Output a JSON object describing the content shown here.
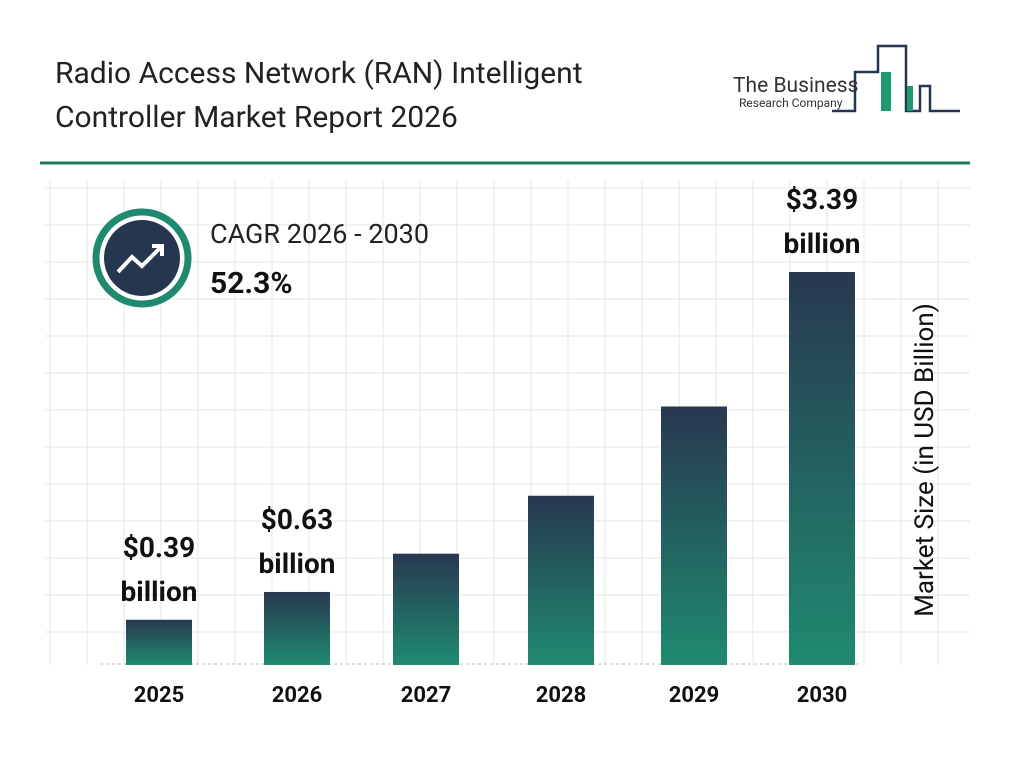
{
  "chart_data": {
    "type": "bar",
    "title": "Radio Access Network (RAN) Intelligent Controller Market Report 2026",
    "categories": [
      "2025",
      "2026",
      "2027",
      "2028",
      "2029",
      "2030"
    ],
    "values": [
      0.39,
      0.63,
      0.96,
      1.46,
      2.23,
      3.39
    ],
    "value_labels": [
      "$0.39 billion",
      "$0.63 billion",
      null,
      null,
      null,
      "$3.39 billion"
    ],
    "color_top": "#283850",
    "color_bottom": "#1f8a70",
    "ylabel": "Market Size (in USD Billion)",
    "cagr_label": "CAGR 2026 - 2030",
    "cagr_value": "52.3%",
    "logo": {
      "line1": "The Business",
      "line2": "Research Company"
    }
  }
}
